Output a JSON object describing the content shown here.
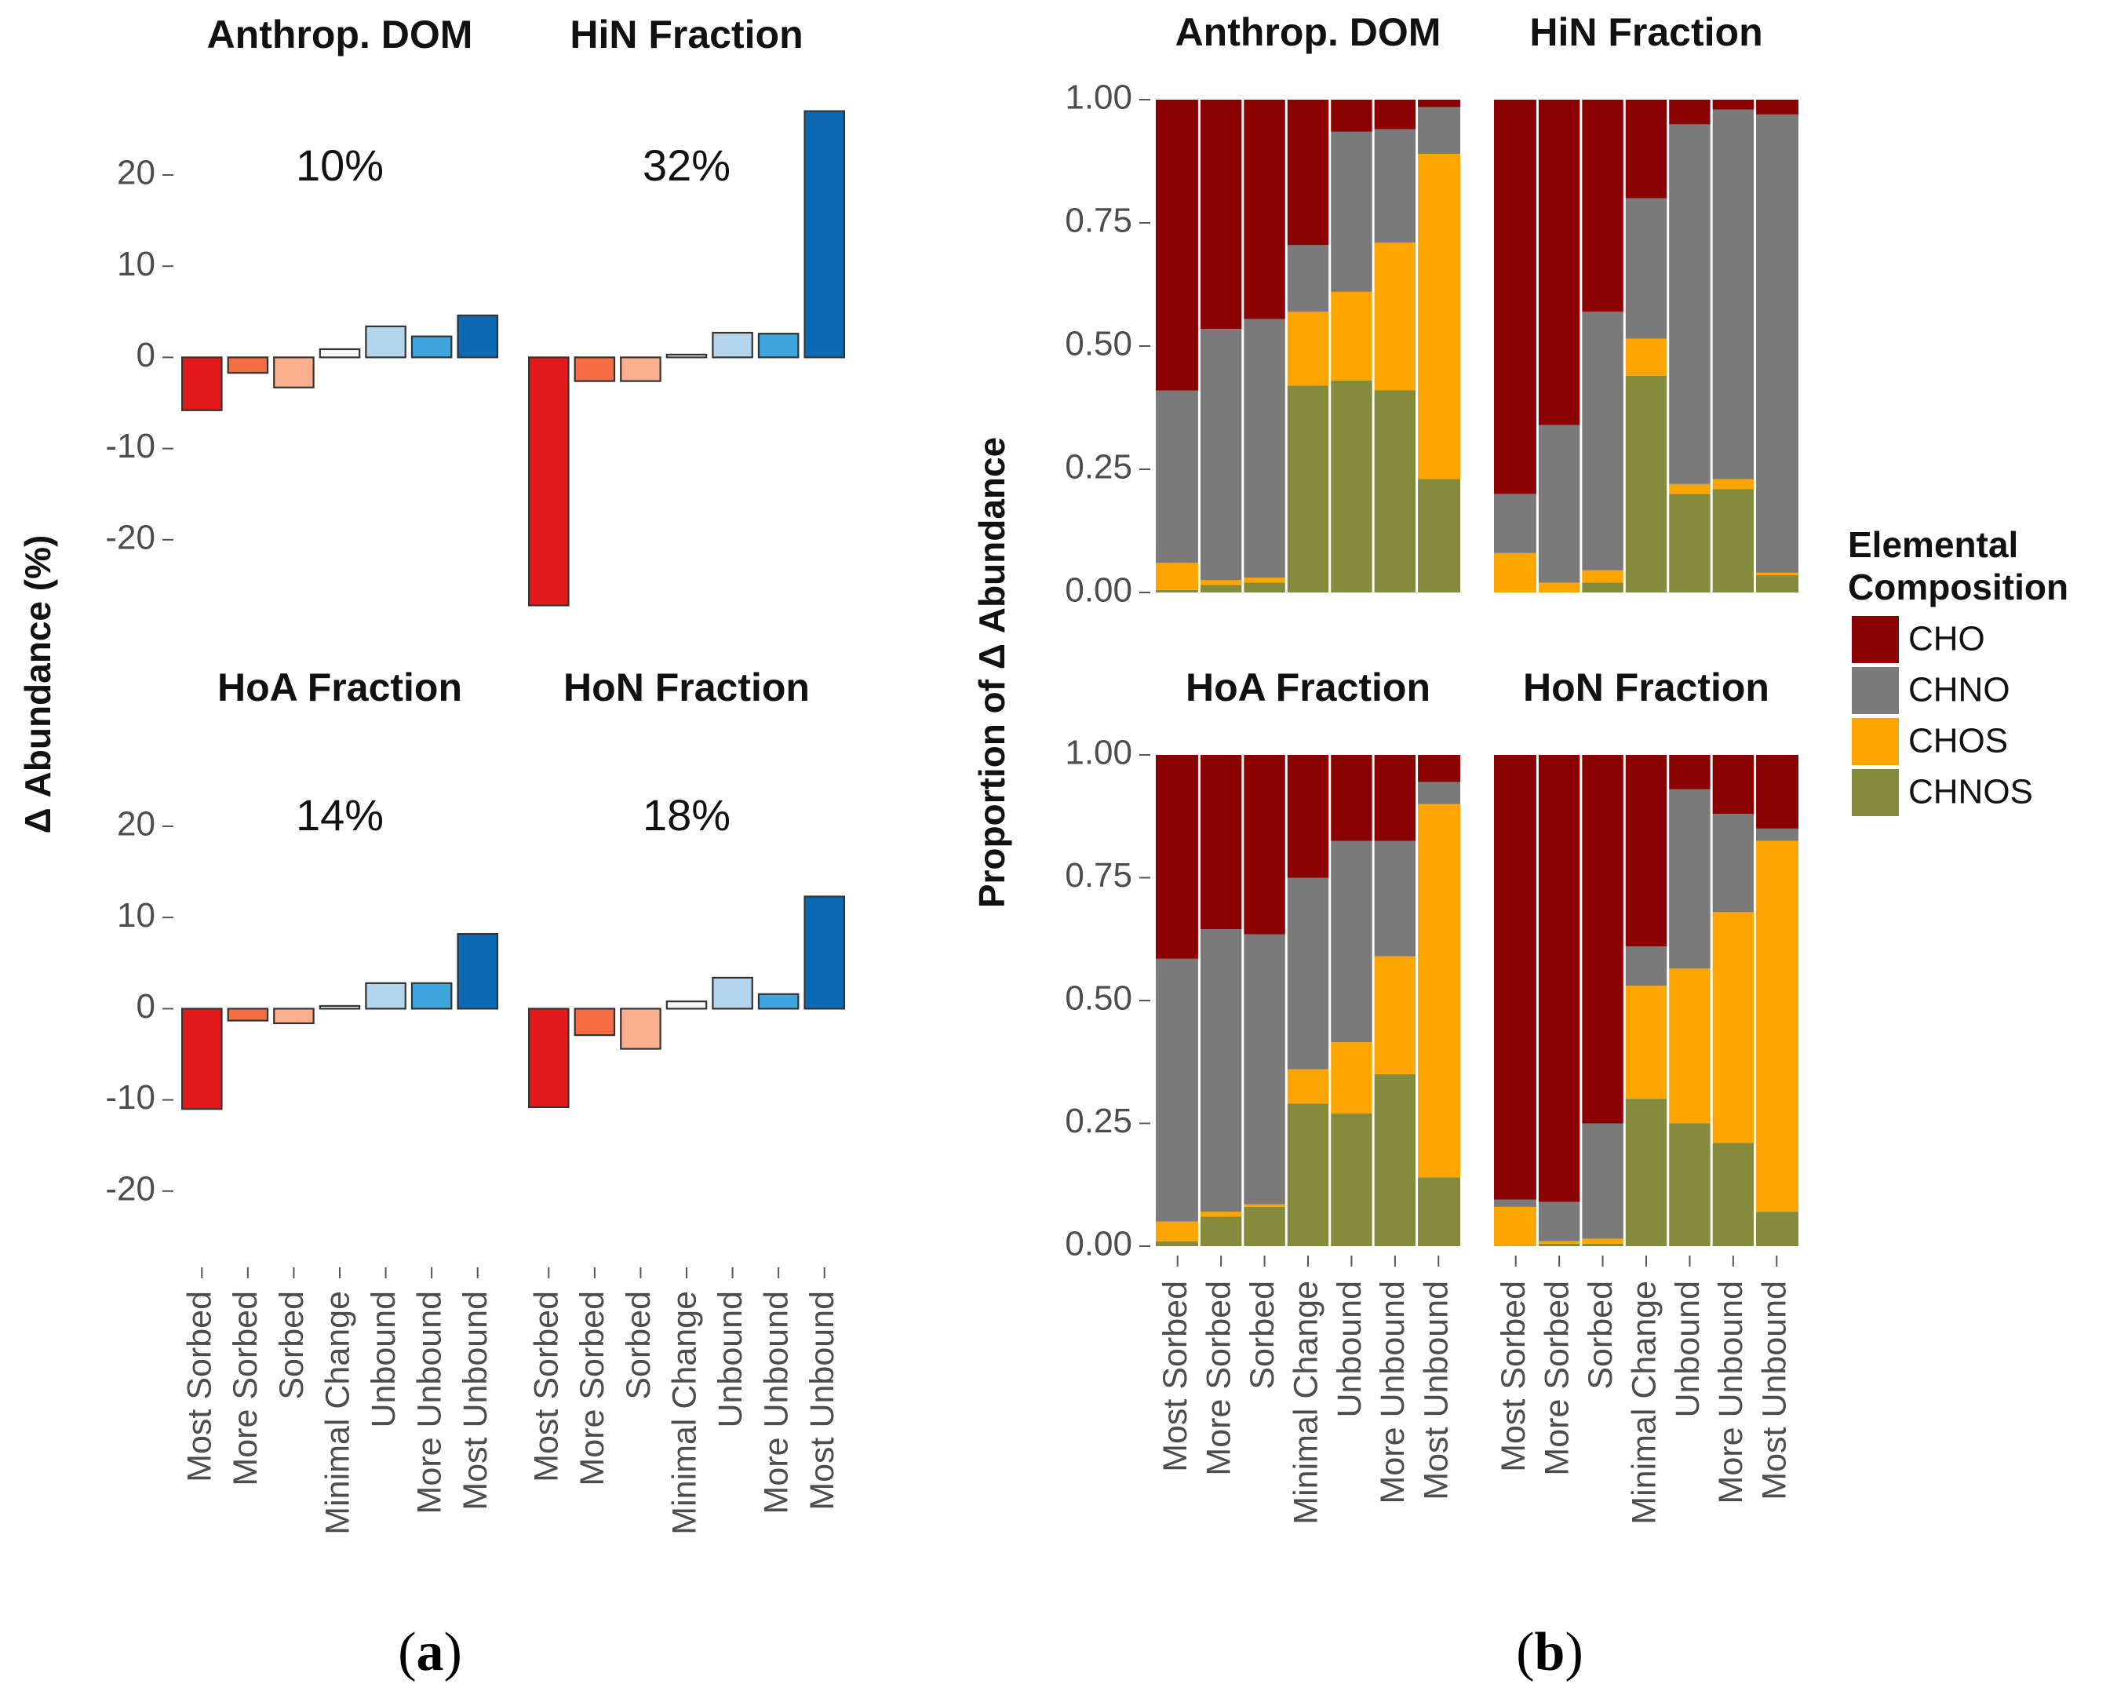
{
  "categories": [
    "Most Sorbed",
    "More Sorbed",
    "Sorbed",
    "Minimal Change",
    "Unbound",
    "More Unbound",
    "Most Unbound"
  ],
  "chart_data": [
    {
      "id": "a",
      "type": "bar",
      "panel_label": "a",
      "ylabel": "Δ Abundance (%)",
      "ylim": [
        -27.5,
        28
      ],
      "yticks": [
        -20,
        -10,
        0,
        10,
        20
      ],
      "ytick_labels": [
        "-20",
        "-10",
        "0",
        "10",
        "20"
      ],
      "bar_colors": [
        "#e31a1c",
        "#f46d43",
        "#fcaf8f",
        "#f7f7f7",
        "#b3d6ec",
        "#3fa6dd",
        "#0e69b3"
      ],
      "facets": [
        {
          "title": "Anthrop. DOM",
          "annotation": "10%",
          "values": [
            -5.8,
            -1.7,
            -3.3,
            0.9,
            3.4,
            2.3,
            4.6
          ]
        },
        {
          "title": "HiN Fraction",
          "annotation": "32%",
          "values": [
            -27.2,
            -2.6,
            -2.6,
            0.3,
            2.7,
            2.6,
            27.0
          ]
        },
        {
          "title": "HoA Fraction",
          "annotation": "14%",
          "values": [
            -11.0,
            -1.3,
            -1.6,
            0.3,
            2.8,
            2.8,
            8.2
          ]
        },
        {
          "title": "HoN Fraction",
          "annotation": "18%",
          "values": [
            -10.8,
            -2.9,
            -4.4,
            0.8,
            3.4,
            1.6,
            12.3
          ]
        }
      ]
    },
    {
      "id": "b",
      "type": "bar",
      "stacked": true,
      "panel_label": "b",
      "ylabel": "Proportion of Δ Abundance",
      "ylim": [
        0,
        1
      ],
      "yticks": [
        0,
        0.25,
        0.5,
        0.75,
        1
      ],
      "ytick_labels": [
        "0.00",
        "0.25",
        "0.50",
        "0.75",
        "1.00"
      ],
      "legend": {
        "title_line1": "Elemental",
        "title_line2": "Composition",
        "position": "right",
        "entries": [
          {
            "name": "CHO",
            "color": "#8b0000"
          },
          {
            "name": "CHNO",
            "color": "#7a7a7a"
          },
          {
            "name": "CHOS",
            "color": "#ffa500"
          },
          {
            "name": "CHNOS",
            "color": "#858b3c"
          }
        ]
      },
      "series_order_bottom_to_top": [
        "CHNOS",
        "CHOS",
        "CHNO",
        "CHO"
      ],
      "facets": [
        {
          "title": "Anthrop. DOM",
          "series": {
            "CHNOS": [
              0.005,
              0.015,
              0.02,
              0.42,
              0.43,
              0.41,
              0.23
            ],
            "CHOS": [
              0.055,
              0.01,
              0.01,
              0.15,
              0.18,
              0.3,
              0.66
            ],
            "CHNO": [
              0.35,
              0.51,
              0.525,
              0.135,
              0.325,
              0.23,
              0.095
            ],
            "CHO": [
              0.59,
              0.465,
              0.445,
              0.295,
              0.065,
              0.06,
              0.015
            ]
          }
        },
        {
          "title": "HiN Fraction",
          "series": {
            "CHNOS": [
              0.0,
              0.0,
              0.02,
              0.44,
              0.2,
              0.21,
              0.035
            ],
            "CHOS": [
              0.08,
              0.02,
              0.025,
              0.075,
              0.02,
              0.02,
              0.005
            ],
            "CHNO": [
              0.12,
              0.32,
              0.525,
              0.285,
              0.73,
              0.75,
              0.93
            ],
            "CHO": [
              0.8,
              0.66,
              0.43,
              0.2,
              0.05,
              0.02,
              0.03
            ]
          }
        },
        {
          "title": "HoA Fraction",
          "series": {
            "CHNOS": [
              0.01,
              0.06,
              0.08,
              0.29,
              0.27,
              0.35,
              0.14
            ],
            "CHOS": [
              0.04,
              0.01,
              0.005,
              0.07,
              0.145,
              0.24,
              0.76
            ],
            "CHNO": [
              0.535,
              0.575,
              0.55,
              0.39,
              0.41,
              0.235,
              0.045
            ],
            "CHO": [
              0.415,
              0.355,
              0.365,
              0.25,
              0.175,
              0.175,
              0.055
            ]
          }
        },
        {
          "title": "HoN Fraction",
          "series": {
            "CHNOS": [
              0.0,
              0.005,
              0.005,
              0.3,
              0.25,
              0.21,
              0.07
            ],
            "CHOS": [
              0.08,
              0.005,
              0.01,
              0.23,
              0.315,
              0.47,
              0.755
            ],
            "CHNO": [
              0.015,
              0.08,
              0.235,
              0.08,
              0.365,
              0.2,
              0.025
            ],
            "CHO": [
              0.905,
              0.91,
              0.75,
              0.39,
              0.07,
              0.12,
              0.15
            ]
          }
        }
      ]
    }
  ]
}
